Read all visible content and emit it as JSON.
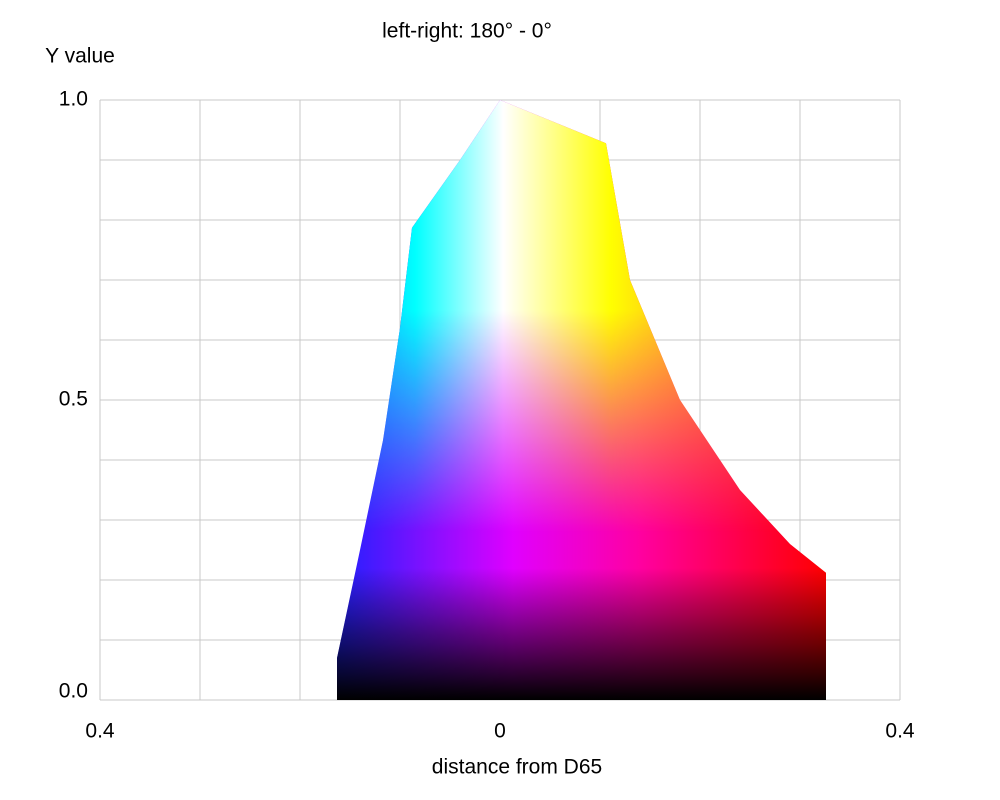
{
  "chart_data": {
    "type": "area",
    "title": "left-right: 180° - 0°",
    "ylabel": "Y value",
    "xlabel": "distance from D65",
    "xlim": [
      -0.4,
      0.4
    ],
    "ylim": [
      0,
      1
    ],
    "xticks": [
      {
        "value": -0.4,
        "label": "0.4"
      },
      0,
      0.4
    ],
    "yticks": [
      {
        "value": 1,
        "label": "1.0"
      },
      0.5,
      {
        "value": 0,
        "label": "0.0"
      }
    ],
    "x_grid": [
      -0.4,
      -0.3,
      -0.2,
      -0.1,
      0,
      0.1,
      0.2,
      0.3,
      0.4
    ],
    "y_grid": [
      0,
      0.1,
      0.2,
      0.3,
      0.4,
      0.5,
      0.6,
      0.7,
      0.8,
      0.9,
      1
    ],
    "grid": true,
    "boundary": {
      "x": [
        -0.163,
        -0.163,
        -0.14,
        -0.117,
        -0.1,
        -0.088,
        -0.04,
        0,
        0.106,
        0.13,
        0.18,
        0.24,
        0.29,
        0.326,
        0.326
      ],
      "y": [
        0,
        0.07,
        0.25,
        0.433,
        0.62,
        0.787,
        0.9,
        1,
        0.928,
        0.7,
        0.5,
        0.35,
        0.26,
        0.212,
        0
      ]
    }
  }
}
